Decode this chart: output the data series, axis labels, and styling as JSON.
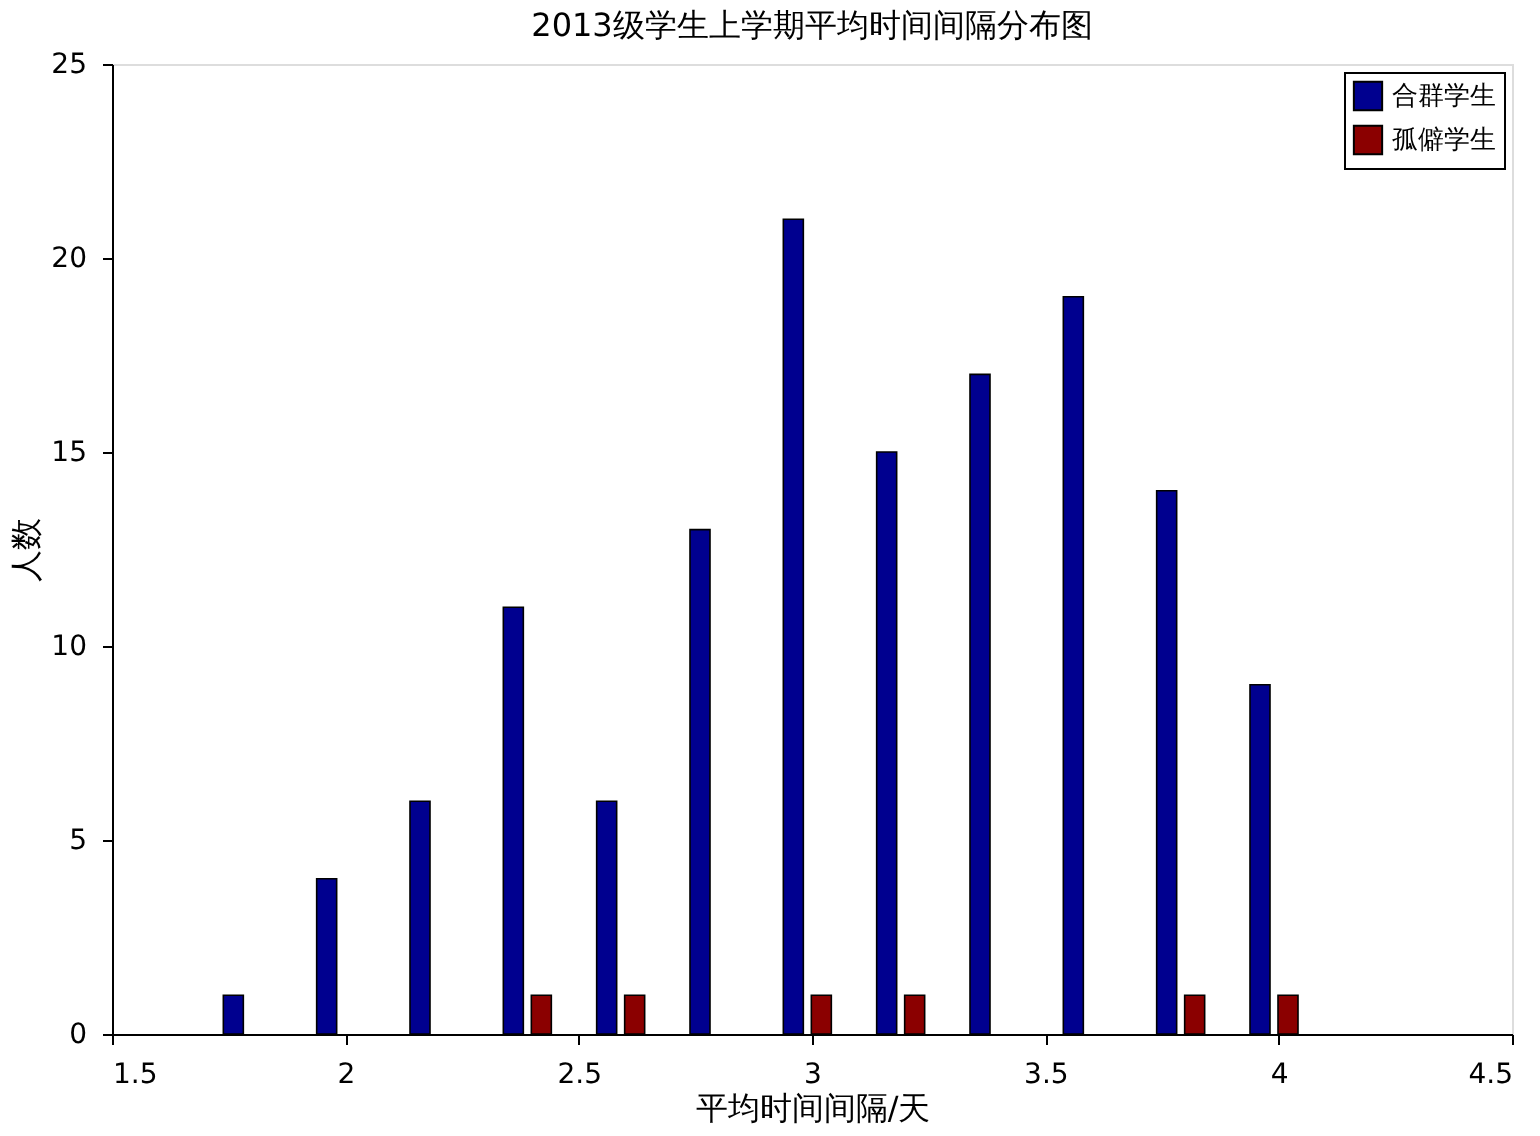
{
  "chart_data": {
    "type": "bar",
    "title": "2013级学生上学期平均时间间隔分布图",
    "xlabel": "平均时间间隔/天",
    "ylabel": "人数",
    "series": [
      {
        "name": "合群学生",
        "color": "#00008f",
        "x": [
          1.76,
          1.96,
          2.16,
          2.36,
          2.56,
          2.76,
          2.96,
          3.16,
          3.36,
          3.56,
          3.76,
          3.96
        ],
        "values": [
          1,
          4,
          6,
          11,
          6,
          13,
          21,
          15,
          17,
          19,
          14,
          9
        ]
      },
      {
        "name": "孤僻学生",
        "color": "#8b0000",
        "x": [
          2.42,
          2.62,
          3.02,
          3.22,
          3.82,
          4.02
        ],
        "values": [
          1,
          1,
          1,
          1,
          1,
          1
        ]
      }
    ],
    "xlim": [
      1.5,
      4.5
    ],
    "xticks": [
      1.5,
      2,
      2.5,
      3,
      3.5,
      4,
      4.5
    ],
    "ylim": [
      0,
      25
    ],
    "yticks": [
      0,
      5,
      10,
      15,
      20,
      25
    ],
    "grid": false,
    "legend": "top right"
  }
}
